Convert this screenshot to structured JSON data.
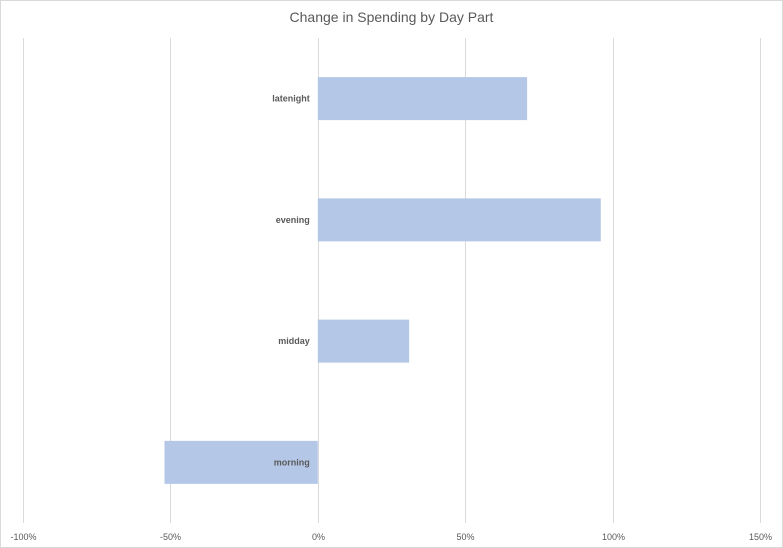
{
  "chart_data": {
    "type": "bar",
    "orientation": "horizontal",
    "title": "Change in Spending by Day Part",
    "categories": [
      "latenight",
      "evening",
      "midday",
      "morning"
    ],
    "values": [
      0.71,
      0.96,
      0.31,
      -0.52
    ],
    "x_ticks": [
      "-100%",
      "-50%",
      "0%",
      "50%",
      "100%",
      "150%"
    ],
    "x_tick_values": [
      -1,
      -0.5,
      0,
      0.5,
      1,
      1.5
    ],
    "xlim": [
      -1,
      1.5
    ],
    "xlabel": "",
    "ylabel": "",
    "grid": "vertical",
    "legend": "none",
    "bar_color": "#b4c7e7",
    "grid_color": "#d9d9d9",
    "text_color": "#595959"
  }
}
